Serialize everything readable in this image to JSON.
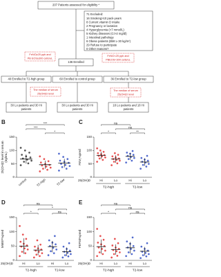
{
  "flowchart": {
    "assessed": "207 Patients assessed for eligibility *",
    "excluded": {
      "title": "71 Excluded:",
      "lines": [
        "16 Smoking>10 pack-years",
        "8 Current vitamin D intake",
        "2 Pregnancy or lactation",
        "4 Hyperglycemia (>7 mmol/L)",
        "5 Kidney diseases (Cr>2 mg/dl)",
        "1 Intestinal pathology",
        "6 Obese patients (BMI ≥ 30 kg/m²)",
        "29 Refuse to participate",
        "0 Other reasons?"
      ]
    },
    "criteria_left": [
      "FeNO≥25 ppb and",
      "PB EOS≥300 cells/uL"
    ],
    "criteria_right": [
      "FeNO<25 ppb and",
      "PBEOS<300 cells/uL"
    ],
    "enrolled": "136 Enrolled",
    "groups": [
      "40 Enrolled to T2-high group",
      "60 Enrolled to control group",
      "36 Enrolled to T2-low group"
    ],
    "median_left": [
      "The median of serum",
      "25(OH)D level"
    ],
    "median_right": [
      "The median of serum",
      "25(OH)D level"
    ],
    "outcomes": [
      [
        "30 Lo patients and 30 Hi",
        "patients"
      ],
      [
        "30 Lo patients and 30 Hi",
        "patients"
      ],
      [
        "18 Lo patients and 18 Hi",
        "patients"
      ]
    ]
  },
  "chart_data": [
    {
      "type": "dotplot",
      "label": "B",
      "ylabel": [
        "25(OH)D level in serum",
        "(ng/mL)"
      ],
      "ylim": [
        0,
        150
      ],
      "yticks": [
        0,
        50,
        100,
        150
      ],
      "categories": [
        "control",
        "T2-high",
        "T2-low"
      ],
      "points": [
        {
          "color": "#222222",
          "values": [
            45,
            52,
            58,
            62,
            66,
            70,
            74,
            78,
            84,
            92,
            100,
            110
          ],
          "mean": 68,
          "sd": 17
        },
        {
          "color": "#e02020",
          "values": [
            22,
            28,
            32,
            36,
            40,
            44,
            46,
            50,
            55,
            60,
            68,
            78
          ],
          "mean": 47,
          "sd": 15
        },
        {
          "color": "#2040c0",
          "values": [
            25,
            32,
            38,
            42,
            46,
            50,
            54,
            58,
            62,
            68,
            76,
            88
          ],
          "mean": 53,
          "sd": 16
        }
      ],
      "comparisons": [
        {
          "from": 0,
          "to": 2,
          "label": "***"
        },
        {
          "from": 0,
          "to": 1,
          "label": "***"
        },
        {
          "from": 1,
          "to": 2,
          "label": "*"
        }
      ]
    },
    {
      "type": "dotplot",
      "label": "C",
      "ylabel": [
        "FEV₁%pred"
      ],
      "ylim": [
        0,
        150
      ],
      "yticks": [
        0,
        50,
        100,
        150
      ],
      "categories": [
        "Hi",
        "Lo",
        "Hi",
        "Lo"
      ],
      "xlabel": "25(OH)D",
      "groups": [
        {
          "label": "T2-high",
          "from": 0,
          "to": 1
        },
        {
          "label": "T2-low",
          "from": 2,
          "to": 3
        }
      ],
      "points": [
        {
          "color": "#e02020",
          "values": [
            58,
            65,
            70,
            74,
            78,
            80,
            83,
            86,
            90,
            95,
            100,
            108
          ],
          "mean": 82,
          "sd": 13
        },
        {
          "color": "#e02020",
          "values": [
            45,
            52,
            58,
            62,
            65,
            68,
            70,
            74,
            78,
            84,
            90
          ],
          "mean": 68,
          "sd": 14
        },
        {
          "color": "#2040c0",
          "values": [
            55,
            62,
            68,
            72,
            76,
            80,
            84,
            88,
            92,
            98
          ],
          "mean": 78,
          "sd": 13
        },
        {
          "color": "#2040c0",
          "values": [
            32,
            40,
            46,
            50,
            55,
            58,
            62,
            66,
            72,
            80
          ],
          "mean": 57,
          "sd": 14
        }
      ],
      "comparisons": [
        {
          "from": 0,
          "to": 2,
          "label": "ns"
        },
        {
          "from": 1,
          "to": 3,
          "label": "ns"
        },
        {
          "from": 0,
          "to": 1,
          "label": "*"
        },
        {
          "from": 2,
          "to": 3,
          "label": "**"
        }
      ]
    },
    {
      "type": "dotplot",
      "label": "D",
      "ylabel": [
        "MMEF%pred"
      ],
      "ylim": [
        0,
        150
      ],
      "yticks": [
        0,
        50,
        100,
        150
      ],
      "categories": [
        "Hi",
        "Lo",
        "Hi",
        "Lo"
      ],
      "xlabel": "25(OH)D",
      "groups": [
        {
          "label": "T2-high",
          "from": 0,
          "to": 1
        },
        {
          "label": "T2-low",
          "from": 2,
          "to": 3
        }
      ],
      "points": [
        {
          "color": "#e02020",
          "values": [
            15,
            25,
            30,
            38,
            42,
            48,
            52,
            58,
            65,
            75,
            90,
            120
          ],
          "mean": 50,
          "sd": 27
        },
        {
          "color": "#e02020",
          "values": [
            10,
            15,
            20,
            25,
            30,
            34,
            38,
            42,
            48,
            55,
            70
          ],
          "mean": 36,
          "sd": 18
        },
        {
          "color": "#2040c0",
          "values": [
            18,
            25,
            32,
            38,
            44,
            50,
            56,
            62,
            70,
            85
          ],
          "mean": 48,
          "sd": 20
        },
        {
          "color": "#2040c0",
          "values": [
            10,
            14,
            18,
            22,
            26,
            30,
            34,
            40,
            48,
            60
          ],
          "mean": 30,
          "sd": 15
        }
      ],
      "comparisons": [
        {
          "from": 0,
          "to": 2,
          "label": "ns"
        },
        {
          "from": 1,
          "to": 3,
          "label": "*"
        },
        {
          "from": 0,
          "to": 1,
          "label": "*"
        },
        {
          "from": 2,
          "to": 3,
          "label": "ns"
        }
      ]
    },
    {
      "type": "dotplot",
      "label": "E",
      "ylabel": [
        "FEF50%pred"
      ],
      "ylim": [
        0,
        150
      ],
      "yticks": [
        0,
        50,
        100,
        150
      ],
      "categories": [
        "Hi",
        "Lo",
        "Hi",
        "Lo"
      ],
      "xlabel": "25(OH)D",
      "groups": [
        {
          "label": "T2-high",
          "from": 0,
          "to": 1
        },
        {
          "label": "T2-low",
          "from": 2,
          "to": 3
        }
      ],
      "points": [
        {
          "color": "#e02020",
          "values": [
            15,
            22,
            28,
            34,
            40,
            45,
            50,
            56,
            62,
            72,
            85,
            110
          ],
          "mean": 48,
          "sd": 25
        },
        {
          "color": "#e02020",
          "values": [
            10,
            16,
            22,
            28,
            32,
            36,
            40,
            45,
            52,
            60,
            75
          ],
          "mean": 38,
          "sd": 18
        },
        {
          "color": "#2040c0",
          "values": [
            15,
            22,
            28,
            34,
            40,
            45,
            50,
            58,
            66,
            80
          ],
          "mean": 44,
          "sd": 20
        },
        {
          "color": "#2040c0",
          "values": [
            8,
            14,
            18,
            22,
            26,
            30,
            34,
            40,
            48,
            60
          ],
          "mean": 32,
          "sd": 15
        }
      ],
      "comparisons": [
        {
          "from": 0,
          "to": 2,
          "label": "ns"
        },
        {
          "from": 1,
          "to": 3,
          "label": "ns"
        },
        {
          "from": 0,
          "to": 1,
          "label": "*"
        },
        {
          "from": 2,
          "to": 3,
          "label": "ns"
        }
      ]
    }
  ]
}
